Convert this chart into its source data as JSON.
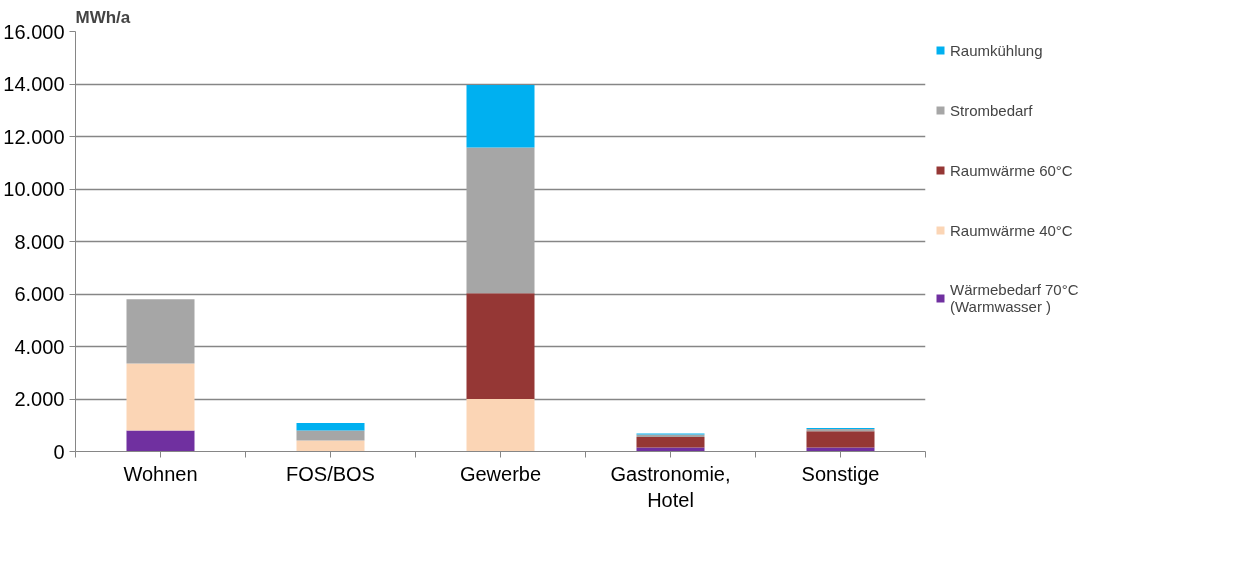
{
  "chart_data": {
    "type": "bar",
    "stacked": true,
    "ylabel": "MWh/a",
    "categories": [
      "Wohnen",
      "FOS/BOS",
      "Gewerbe",
      "Gastronomie, Hotel",
      "Sonstige"
    ],
    "series": [
      {
        "name": "Wärmebedarf 70°C (Warmwasser )",
        "color": "#7030a0",
        "values": [
          800,
          0,
          0,
          150,
          150
        ]
      },
      {
        "name": "Raumwärme 40°C",
        "color": "#fbd5b5",
        "values": [
          2550,
          420,
          2000,
          0,
          0
        ]
      },
      {
        "name": "Raumwärme 60°C",
        "color": "#953735",
        "values": [
          0,
          0,
          4030,
          400,
          620
        ]
      },
      {
        "name": "Strombedarf",
        "color": "#a6a6a6",
        "values": [
          2450,
          380,
          5550,
          100,
          90
        ]
      },
      {
        "name": "Raumkühlung",
        "color": "#00b0f0",
        "values": [
          0,
          290,
          2380,
          40,
          40
        ]
      }
    ],
    "ylim": [
      0,
      16000
    ],
    "yticks": [
      {
        "value": 0,
        "label": "0"
      },
      {
        "value": 2000,
        "label": "2.000"
      },
      {
        "value": 4000,
        "label": "4.000"
      },
      {
        "value": 6000,
        "label": "6.000"
      },
      {
        "value": 8000,
        "label": "8.000"
      },
      {
        "value": 10000,
        "label": "10.000"
      },
      {
        "value": 12000,
        "label": "12.000"
      },
      {
        "value": 14000,
        "label": "14.000"
      },
      {
        "value": 16000,
        "label": "16.000"
      }
    ],
    "grid": "y",
    "legend": "right"
  }
}
